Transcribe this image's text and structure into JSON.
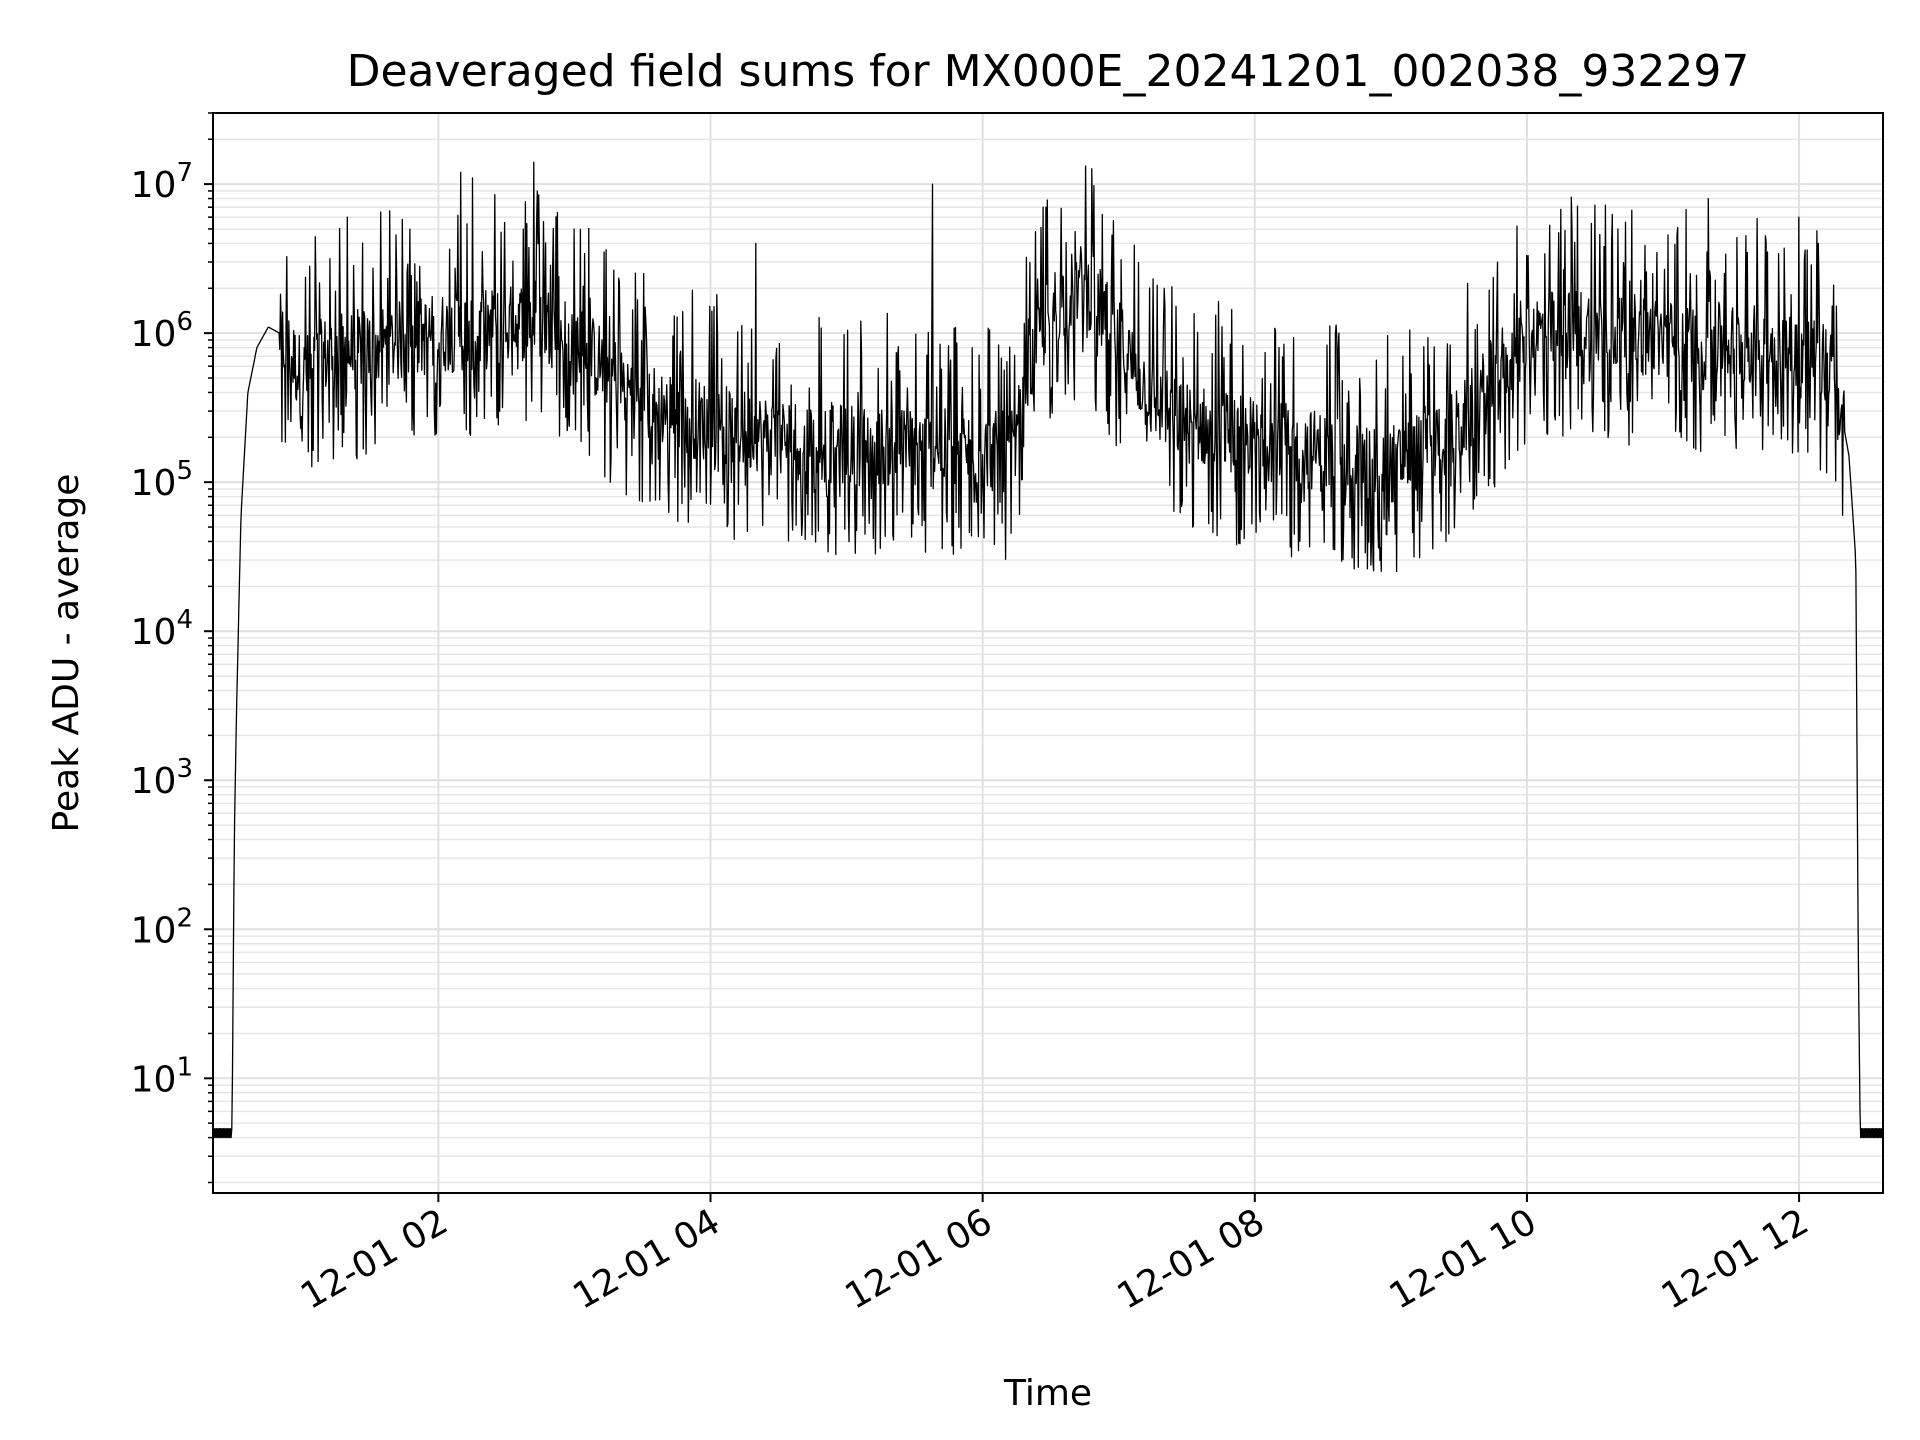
{
  "chart_data": {
    "type": "line",
    "title": "Deaveraged field sums for MX000E_20241201_002038_932297",
    "xlabel": "Time",
    "ylabel": "Peak ADU - average",
    "x_range": [
      "2024-12-01T00:20:38",
      "2024-12-01T12:37:00"
    ],
    "y_range": [
      1.7,
      30000000
    ],
    "y_scale": "log",
    "grid": true,
    "line_color": "#000000",
    "x_tick_labels": [
      "12-01 02",
      "12-01 04",
      "12-01 06",
      "12-01 08",
      "12-01 10",
      "12-01 12"
    ],
    "x_tick_values": [
      "2024-12-01T02:00",
      "2024-12-01T04:00",
      "2024-12-01T06:00",
      "2024-12-01T08:00",
      "2024-12-01T10:00",
      "2024-12-01T12:00"
    ],
    "y_tick_bases": [
      "10",
      "10",
      "10",
      "10",
      "10",
      "10",
      "10"
    ],
    "y_tick_exponents": [
      "1",
      "2",
      "3",
      "4",
      "5",
      "6",
      "7"
    ],
    "y_tick_values": [
      10,
      100,
      1000,
      10000,
      100000,
      1000000,
      10000000
    ],
    "series": [
      {
        "points": [
          [
            "2024-12-01T00:20:38",
            4
          ],
          [
            "2024-12-01T00:29",
            4
          ],
          [
            "2024-12-01T00:30",
            400
          ],
          [
            "2024-12-01T00:31",
            3000
          ],
          [
            "2024-12-01T00:33",
            60000
          ],
          [
            "2024-12-01T00:36",
            400000
          ],
          [
            "2024-12-01T00:40",
            800000
          ],
          [
            "2024-12-01T00:45",
            1100000
          ],
          [
            "2024-12-01T00:50",
            1000000
          ],
          [
            "2024-12-01T01:00",
            500000
          ],
          [
            "2024-12-01T01:10",
            700000
          ],
          [
            "2024-12-01T01:30",
            800000
          ],
          [
            "2024-12-01T02:00",
            1000000
          ],
          [
            "2024-12-01T02:30",
            1100000
          ],
          [
            "2024-12-01T02:42",
            1300000
          ],
          [
            "2024-12-01T03:00",
            900000
          ],
          [
            "2024-12-01T03:30",
            350000
          ],
          [
            "2024-12-01T04:00",
            250000
          ],
          [
            "2024-12-01T04:30",
            200000
          ],
          [
            "2024-12-01T05:00",
            180000
          ],
          [
            "2024-12-01T05:30",
            170000
          ],
          [
            "2024-12-01T06:00",
            160000
          ],
          [
            "2024-12-01T06:15",
            160000
          ],
          [
            "2024-12-01T06:20",
            500000
          ],
          [
            "2024-12-01T06:30",
            1500000
          ],
          [
            "2024-12-01T06:45",
            2200000
          ],
          [
            "2024-12-01T07:00",
            900000
          ],
          [
            "2024-12-01T07:15",
            350000
          ],
          [
            "2024-12-01T07:30",
            250000
          ],
          [
            "2024-12-01T08:00",
            200000
          ],
          [
            "2024-12-01T08:30",
            160000
          ],
          [
            "2024-12-01T09:00",
            130000
          ],
          [
            "2024-12-01T09:30",
            230000
          ],
          [
            "2024-12-01T09:45",
            500000
          ],
          [
            "2024-12-01T10:00",
            1000000
          ],
          [
            "2024-12-01T10:30",
            1100000
          ],
          [
            "2024-12-01T11:00",
            900000
          ],
          [
            "2024-12-01T11:30",
            850000
          ],
          [
            "2024-12-01T12:00",
            800000
          ],
          [
            "2024-12-01T12:15",
            600000
          ],
          [
            "2024-12-01T12:22",
            150000
          ],
          [
            "2024-12-01T12:25",
            30000
          ],
          [
            "2024-12-01T12:26",
            100
          ],
          [
            "2024-12-01T12:27",
            4
          ],
          [
            "2024-12-01T12:37",
            4
          ]
        ],
        "spikes": [
          [
            "2024-12-01T02:10",
            12000000
          ],
          [
            "2024-12-01T02:15",
            11000000
          ],
          [
            "2024-12-01T02:25",
            8500000
          ],
          [
            "2024-12-01T02:42",
            14000000
          ],
          [
            "2024-12-01T05:38",
            10000000
          ],
          [
            "2024-12-01T06:28",
            7000000
          ],
          [
            "2024-12-01T11:20",
            8000000
          ],
          [
            "2024-12-01T11:45",
            4500000
          ],
          [
            "2024-12-01T12:00",
            6000000
          ],
          [
            "2024-12-01T01:20",
            6000000
          ],
          [
            "2024-12-01T03:00",
            5000000
          ],
          [
            "2024-12-01T07:20",
            2000000
          ],
          [
            "2024-12-01T10:20",
            5000000
          ],
          [
            "2024-12-01T10:40",
            5000000
          ],
          [
            "2024-12-01T04:20",
            4000000
          ]
        ]
      }
    ]
  }
}
